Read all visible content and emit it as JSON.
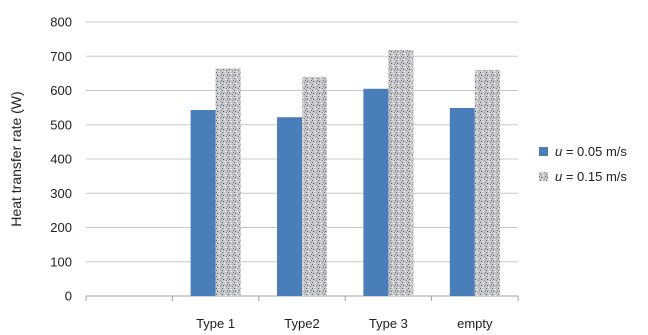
{
  "chart_data": {
    "type": "bar",
    "title": "",
    "xlabel": "",
    "ylabel": "Heat transfer rate (W)",
    "categories": [
      "",
      "Type 1",
      "Type2",
      "Type 3",
      "empty"
    ],
    "series": [
      {
        "name_var": "u",
        "name_rest": " = 0.05 m/s",
        "color": "#4a7ebb",
        "pattern": "solid",
        "values": [
          null,
          543,
          522,
          605,
          549
        ]
      },
      {
        "name_var": "u",
        "name_rest": " = 0.15 m/s",
        "color": "#9ea0a4",
        "pattern": "granite",
        "values": [
          null,
          664,
          640,
          718,
          660
        ]
      }
    ],
    "ylim": [
      0,
      800
    ],
    "yticks": [
      0,
      100,
      200,
      300,
      400,
      500,
      600,
      700,
      800
    ],
    "grid": true,
    "legend_position": "right"
  }
}
